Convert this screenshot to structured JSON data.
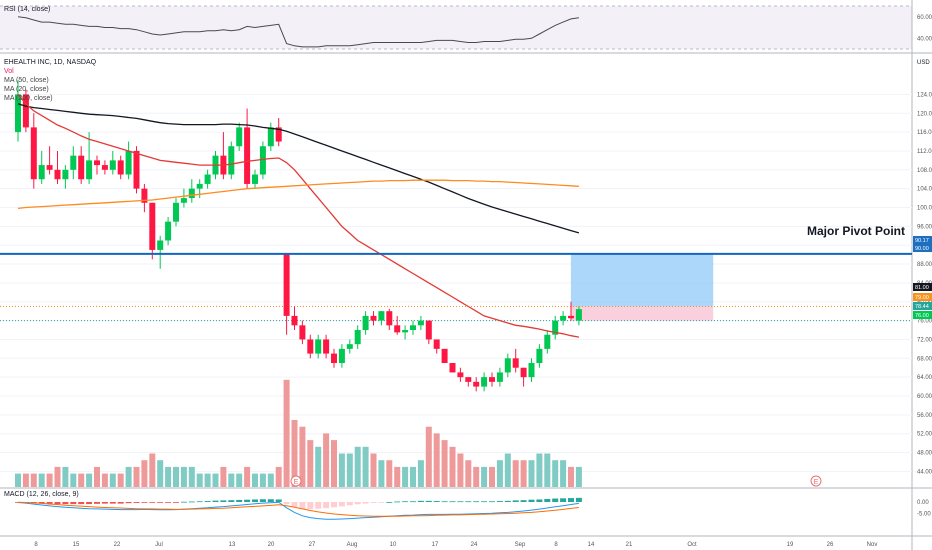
{
  "rsi_pane": {
    "label": "RSI (14, close)",
    "axis_ticks": [
      {
        "value": 60,
        "label": "60.00"
      },
      {
        "value": 40,
        "label": "40.00"
      }
    ],
    "band_upper": 70,
    "band_lower": 30
  },
  "price_pane": {
    "legend": [
      {
        "text": "EHEALTH INC, 1D, NASDAQ",
        "color": "#131722"
      },
      {
        "text": "Vol",
        "color": "#e91e63"
      },
      {
        "text": "MA (50, close)",
        "color": "#444444"
      },
      {
        "text": "MA (20, close)",
        "color": "#444444"
      },
      {
        "text": "MA (200, close)",
        "color": "#444444"
      }
    ],
    "currency": "USD",
    "major_pivot_label": "Major Pivot Point",
    "badges": [
      {
        "value": 90.17,
        "label": "90.17",
        "color": "#1e6fc0"
      },
      {
        "value": 90.0,
        "label": "90.00",
        "color": "#1e6fc0"
      },
      {
        "value": 81.0,
        "label": "81.00",
        "color": "#131722"
      },
      {
        "value": 79.0,
        "label": "79.00",
        "color": "#f7931e"
      },
      {
        "value": 78.44,
        "label": "78.44",
        "color": "#26a69a"
      },
      {
        "value": 76.0,
        "label": "76.00",
        "color": "#00c853"
      }
    ]
  },
  "macd_pane": {
    "label": "MACD (12, 26, close, 9)",
    "axis_ticks": [
      {
        "value": 0,
        "label": "0.00"
      },
      {
        "value": -5,
        "label": "-5.00"
      }
    ]
  },
  "time_axis": {
    "labels": [
      "8",
      "15",
      "22",
      "Jul",
      "13",
      "20",
      "27",
      "Aug",
      "10",
      "17",
      "24",
      "Sep",
      "8",
      "14",
      "21",
      "Oct",
      "19",
      "26",
      "Nov"
    ]
  },
  "chart_data": {
    "type": "candlestick",
    "title": "EHEALTH INC, 1D, NASDAQ",
    "ylim": [
      41,
      126
    ],
    "y_ticks": [
      44,
      48,
      52,
      56,
      60,
      64,
      68,
      72,
      76,
      80,
      84,
      88,
      92,
      96,
      100,
      104,
      108,
      112,
      116,
      120,
      124
    ],
    "candles": [
      {
        "o": 116.0,
        "h": 127.0,
        "l": 114.0,
        "c": 124.0
      },
      {
        "o": 124.0,
        "h": 125.0,
        "l": 116.0,
        "c": 117.0
      },
      {
        "o": 117.0,
        "h": 120.0,
        "l": 104.0,
        "c": 106.0
      },
      {
        "o": 106.0,
        "h": 112.0,
        "l": 105.0,
        "c": 109.0
      },
      {
        "o": 109.0,
        "h": 113.0,
        "l": 107.0,
        "c": 108.0
      },
      {
        "o": 108.0,
        "h": 112.0,
        "l": 105.0,
        "c": 106.0
      },
      {
        "o": 106.0,
        "h": 109.0,
        "l": 104.0,
        "c": 108.0
      },
      {
        "o": 108.0,
        "h": 113.0,
        "l": 106.0,
        "c": 111.0
      },
      {
        "o": 111.0,
        "h": 113.0,
        "l": 105.0,
        "c": 106.0
      },
      {
        "o": 106.0,
        "h": 116.0,
        "l": 105.0,
        "c": 110.0
      },
      {
        "o": 110.0,
        "h": 111.0,
        "l": 107.0,
        "c": 109.0
      },
      {
        "o": 109.0,
        "h": 110.0,
        "l": 107.0,
        "c": 108.0
      },
      {
        "o": 108.0,
        "h": 112.0,
        "l": 107.0,
        "c": 110.0
      },
      {
        "o": 110.0,
        "h": 111.0,
        "l": 106.0,
        "c": 107.0
      },
      {
        "o": 107.0,
        "h": 114.0,
        "l": 106.0,
        "c": 112.0
      },
      {
        "o": 112.0,
        "h": 113.0,
        "l": 103.0,
        "c": 104.0
      },
      {
        "o": 104.0,
        "h": 105.0,
        "l": 99.0,
        "c": 101.0
      },
      {
        "o": 101.0,
        "h": 101.0,
        "l": 89.0,
        "c": 91.0
      },
      {
        "o": 91.0,
        "h": 94.0,
        "l": 87.0,
        "c": 93.0
      },
      {
        "o": 93.0,
        "h": 98.0,
        "l": 92.0,
        "c": 97.0
      },
      {
        "o": 97.0,
        "h": 102.0,
        "l": 96.0,
        "c": 101.0
      },
      {
        "o": 101.0,
        "h": 104.0,
        "l": 100.0,
        "c": 102.0
      },
      {
        "o": 102.0,
        "h": 106.0,
        "l": 101.0,
        "c": 104.0
      },
      {
        "o": 104.0,
        "h": 106.0,
        "l": 102.0,
        "c": 105.0
      },
      {
        "o": 105.0,
        "h": 108.0,
        "l": 104.0,
        "c": 107.0
      },
      {
        "o": 107.0,
        "h": 112.0,
        "l": 106.0,
        "c": 111.0
      },
      {
        "o": 111.0,
        "h": 116.0,
        "l": 106.0,
        "c": 107.0
      },
      {
        "o": 107.0,
        "h": 114.0,
        "l": 106.0,
        "c": 113.0
      },
      {
        "o": 113.0,
        "h": 118.0,
        "l": 112.0,
        "c": 117.0
      },
      {
        "o": 117.0,
        "h": 121.0,
        "l": 104.0,
        "c": 105.0
      },
      {
        "o": 105.0,
        "h": 108.0,
        "l": 104.0,
        "c": 107.0
      },
      {
        "o": 107.0,
        "h": 114.0,
        "l": 106.0,
        "c": 113.0
      },
      {
        "o": 113.0,
        "h": 118.0,
        "l": 112.0,
        "c": 117.0
      },
      {
        "o": 117.0,
        "h": 119.0,
        "l": 113.0,
        "c": 114.0
      },
      {
        "o": 90.0,
        "h": 90.0,
        "l": 73.0,
        "c": 77.0
      },
      {
        "o": 77.0,
        "h": 79.0,
        "l": 74.0,
        "c": 75.0
      },
      {
        "o": 75.0,
        "h": 76.0,
        "l": 71.0,
        "c": 72.0
      },
      {
        "o": 72.0,
        "h": 73.0,
        "l": 68.0,
        "c": 69.0
      },
      {
        "o": 69.0,
        "h": 73.0,
        "l": 68.0,
        "c": 72.0
      },
      {
        "o": 72.0,
        "h": 73.0,
        "l": 68.0,
        "c": 69.0
      },
      {
        "o": 69.0,
        "h": 70.0,
        "l": 66.0,
        "c": 67.0
      },
      {
        "o": 67.0,
        "h": 71.0,
        "l": 66.0,
        "c": 70.0
      },
      {
        "o": 70.0,
        "h": 72.0,
        "l": 69.0,
        "c": 71.0
      },
      {
        "o": 71.0,
        "h": 75.0,
        "l": 70.0,
        "c": 74.0
      },
      {
        "o": 74.0,
        "h": 78.0,
        "l": 73.0,
        "c": 77.0
      },
      {
        "o": 77.0,
        "h": 78.0,
        "l": 75.0,
        "c": 76.0
      },
      {
        "o": 76.0,
        "h": 78.0,
        "l": 75.0,
        "c": 78.0
      },
      {
        "o": 78.0,
        "h": 78.5,
        "l": 74.0,
        "c": 75.0
      },
      {
        "o": 75.0,
        "h": 77.0,
        "l": 73.0,
        "c": 73.5
      },
      {
        "o": 73.5,
        "h": 75.0,
        "l": 72.0,
        "c": 74.0
      },
      {
        "o": 74.0,
        "h": 76.0,
        "l": 73.0,
        "c": 75.0
      },
      {
        "o": 75.0,
        "h": 77.0,
        "l": 74.0,
        "c": 76.0
      },
      {
        "o": 76.0,
        "h": 76.0,
        "l": 71.0,
        "c": 72.0
      },
      {
        "o": 72.0,
        "h": 72.0,
        "l": 69.0,
        "c": 70.0
      },
      {
        "o": 70.0,
        "h": 70.0,
        "l": 67.0,
        "c": 67.0
      },
      {
        "o": 67.0,
        "h": 67.0,
        "l": 65.0,
        "c": 65.0
      },
      {
        "o": 65.0,
        "h": 66.0,
        "l": 63.0,
        "c": 64.0
      },
      {
        "o": 64.0,
        "h": 64.0,
        "l": 62.0,
        "c": 63.0
      },
      {
        "o": 63.0,
        "h": 64.0,
        "l": 61.0,
        "c": 62.0
      },
      {
        "o": 62.0,
        "h": 65.0,
        "l": 61.0,
        "c": 64.0
      },
      {
        "o": 64.0,
        "h": 65.0,
        "l": 62.0,
        "c": 63.0
      },
      {
        "o": 63.0,
        "h": 66.0,
        "l": 62.0,
        "c": 65.0
      },
      {
        "o": 65.0,
        "h": 69.0,
        "l": 64.0,
        "c": 68.0
      },
      {
        "o": 68.0,
        "h": 70.0,
        "l": 65.0,
        "c": 66.0
      },
      {
        "o": 66.0,
        "h": 66.0,
        "l": 62.0,
        "c": 64.0
      },
      {
        "o": 64.0,
        "h": 68.0,
        "l": 63.0,
        "c": 67.0
      },
      {
        "o": 67.0,
        "h": 71.0,
        "l": 66.0,
        "c": 70.0
      },
      {
        "o": 70.0,
        "h": 74.0,
        "l": 69.0,
        "c": 73.0
      },
      {
        "o": 73.0,
        "h": 77.0,
        "l": 72.0,
        "c": 76.0
      },
      {
        "o": 76.0,
        "h": 78.0,
        "l": 75.0,
        "c": 77.0
      },
      {
        "o": 77.0,
        "h": 80.0,
        "l": 76.0,
        "c": 76.5
      },
      {
        "o": 76.0,
        "h": 79.0,
        "l": 75.0,
        "c": 78.44
      }
    ],
    "volume": [
      2,
      2,
      2,
      2,
      2,
      3,
      3,
      2,
      2,
      2,
      3,
      2,
      2,
      2,
      3,
      3,
      4,
      5,
      4,
      3,
      3,
      3,
      3,
      2,
      2,
      2,
      3,
      2,
      2,
      3,
      2,
      2,
      2,
      3,
      16,
      10,
      9,
      7,
      6,
      8,
      7,
      5,
      5,
      6,
      6,
      5,
      4,
      4,
      3,
      3,
      3,
      4,
      9,
      8,
      7,
      6,
      5,
      4,
      3,
      3,
      3,
      4,
      5,
      4,
      4,
      4,
      5,
      5,
      4,
      4,
      3,
      3
    ],
    "ma50": [
      122.0,
      121.5,
      121.2,
      121.0,
      120.8,
      120.6,
      120.4,
      120.2,
      120.0,
      119.8,
      119.7,
      119.6,
      119.5,
      119.3,
      119.1,
      118.9,
      118.6,
      118.3,
      118.0,
      117.8,
      117.7,
      117.6,
      117.6,
      117.6,
      117.6,
      117.6,
      117.7,
      117.7,
      117.6,
      117.5,
      117.3,
      117.0,
      116.8,
      116.6,
      116.2,
      115.6,
      115.0,
      114.4,
      113.8,
      113.2,
      112.6,
      112.0,
      111.4,
      110.8,
      110.2,
      109.6,
      109.0,
      108.4,
      107.8,
      107.2,
      106.6,
      106.0,
      105.4,
      104.7,
      104.0,
      103.3,
      102.6,
      101.9,
      101.3,
      100.7,
      100.1,
      99.6,
      99.1,
      98.6,
      98.1,
      97.6,
      97.1,
      96.6,
      96.1,
      95.6,
      95.1,
      94.6
    ],
    "ma20": [
      124.0,
      122.0,
      120.5,
      119.5,
      118.5,
      117.5,
      116.8,
      116.0,
      115.2,
      114.5,
      114.0,
      113.5,
      113.0,
      112.5,
      112.0,
      111.5,
      111.0,
      110.5,
      110.0,
      109.8,
      109.6,
      109.4,
      109.2,
      109.0,
      109.0,
      109.0,
      109.0,
      109.2,
      109.5,
      109.8,
      110.0,
      110.2,
      110.4,
      110.5,
      109.5,
      108.0,
      106.0,
      104.0,
      102.0,
      100.0,
      98.0,
      96.0,
      94.5,
      93.0,
      92.0,
      91.0,
      90.0,
      89.0,
      88.0,
      87.0,
      86.0,
      85.0,
      84.0,
      83.0,
      82.0,
      81.0,
      80.0,
      79.0,
      78.0,
      77.0,
      76.5,
      76.0,
      75.5,
      75.0,
      74.8,
      74.5,
      74.2,
      73.8,
      73.5,
      73.2,
      72.8,
      72.5
    ],
    "ma200": [
      99.8,
      100.0,
      100.1,
      100.2,
      100.3,
      100.4,
      100.5,
      100.6,
      100.7,
      100.8,
      100.9,
      101.0,
      101.1,
      101.2,
      101.3,
      101.4,
      101.5,
      101.6,
      101.8,
      102.0,
      102.2,
      102.4,
      102.6,
      102.8,
      103.0,
      103.2,
      103.4,
      103.6,
      103.8,
      104.0,
      104.1,
      104.2,
      104.3,
      104.4,
      104.5,
      104.6,
      104.7,
      104.8,
      104.9,
      105.0,
      105.1,
      105.2,
      105.3,
      105.4,
      105.5,
      105.6,
      105.6,
      105.7,
      105.7,
      105.7,
      105.8,
      105.8,
      105.8,
      105.8,
      105.8,
      105.7,
      105.7,
      105.7,
      105.6,
      105.6,
      105.5,
      105.5,
      105.4,
      105.3,
      105.2,
      105.1,
      105.0,
      104.9,
      104.8,
      104.7,
      104.6,
      104.5
    ],
    "rsi": [
      60,
      59,
      57,
      55,
      55,
      54,
      53,
      53,
      52,
      51,
      51,
      50,
      50,
      49,
      49,
      48,
      46,
      44,
      43,
      44,
      45,
      46,
      46,
      46,
      47,
      47,
      48,
      47,
      48,
      51,
      50,
      51,
      52,
      53,
      35,
      33,
      32,
      32,
      32,
      33,
      33,
      33,
      33,
      34,
      35,
      36,
      36,
      36,
      36,
      36,
      36,
      36,
      37,
      38,
      38,
      38,
      37,
      36,
      36,
      37,
      37,
      37,
      38,
      39,
      39,
      40,
      44,
      48,
      52,
      55,
      58,
      59
    ],
    "macd_line": [
      -0.2,
      -0.5,
      -0.9,
      -1.3,
      -1.7,
      -2.0,
      -2.3,
      -2.5,
      -2.7,
      -2.9,
      -3.0,
      -3.1,
      -3.2,
      -3.3,
      -3.3,
      -3.3,
      -3.2,
      -3.3,
      -3.4,
      -3.4,
      -3.3,
      -3.1,
      -2.9,
      -2.7,
      -2.5,
      -2.2,
      -2.0,
      -1.7,
      -1.4,
      -1.1,
      -0.8,
      -0.5,
      -0.3,
      -0.1,
      -2.5,
      -4.5,
      -6.0,
      -6.8,
      -7.2,
      -7.5,
      -7.5,
      -7.4,
      -7.2,
      -7.0,
      -6.8,
      -6.6,
      -6.4,
      -6.2,
      -6.0,
      -5.8,
      -5.7,
      -5.5,
      -5.4,
      -5.4,
      -5.4,
      -5.3,
      -5.3,
      -5.2,
      -5.1,
      -5.0,
      -4.9,
      -4.7,
      -4.5,
      -4.2,
      -3.9,
      -3.5,
      -3.1,
      -2.6,
      -2.1,
      -1.6,
      -1.1,
      -0.6
    ],
    "signal_line": [
      -0.1,
      -0.2,
      -0.4,
      -0.6,
      -0.9,
      -1.1,
      -1.4,
      -1.6,
      -1.8,
      -2.0,
      -2.2,
      -2.4,
      -2.5,
      -2.6,
      -2.8,
      -2.9,
      -3.0,
      -3.0,
      -3.1,
      -3.1,
      -3.2,
      -3.2,
      -3.1,
      -3.0,
      -2.9,
      -2.8,
      -2.7,
      -2.5,
      -2.3,
      -2.1,
      -1.9,
      -1.7,
      -1.5,
      -1.2,
      -1.6,
      -2.3,
      -3.0,
      -3.7,
      -4.3,
      -4.8,
      -5.2,
      -5.5,
      -5.8,
      -6.0,
      -6.1,
      -6.2,
      -6.2,
      -6.2,
      -6.2,
      -6.1,
      -6.0,
      -6.0,
      -5.9,
      -5.8,
      -5.7,
      -5.6,
      -5.6,
      -5.5,
      -5.4,
      -5.3,
      -5.2,
      -5.1,
      -5.0,
      -4.9,
      -4.7,
      -4.5,
      -4.2,
      -3.9,
      -3.6,
      -3.2,
      -2.8,
      -2.4
    ],
    "trade_box": {
      "entry": 79.0,
      "target": 90.0,
      "stop": 76.0,
      "start_index": 71,
      "end_index": 88
    }
  }
}
